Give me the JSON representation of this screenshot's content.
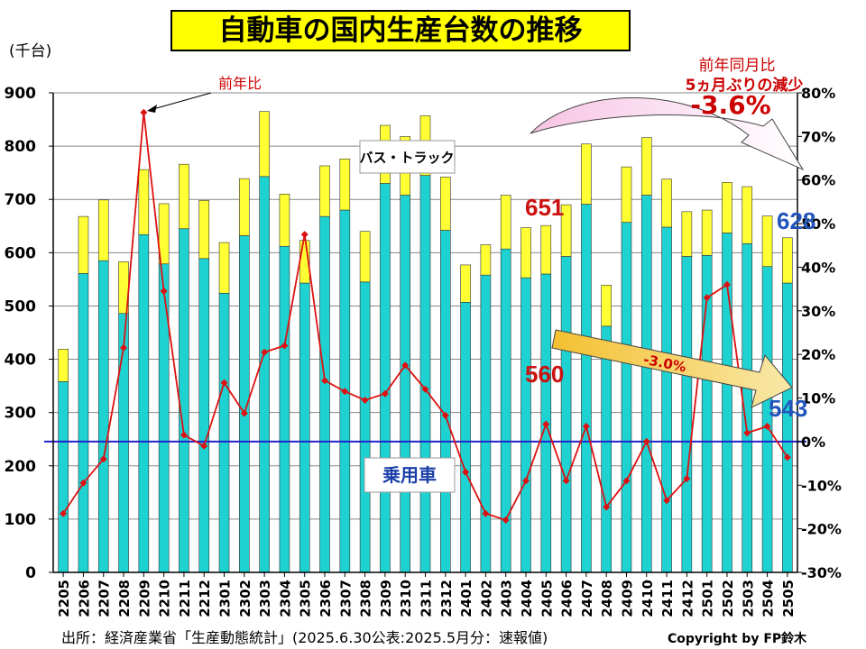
{
  "header": {
    "title": "自動車の国内生産台数の推移",
    "unit_label": "(千台)"
  },
  "yoy_box": {
    "title": "前年同月比",
    "subtitle": "5ヵ月ぶりの減少",
    "value": "-3.6%"
  },
  "footer": {
    "source": "出所：経済産業省「生産動態統計」(2025.6.30公表:2025.5月分：速報値)",
    "copyright": "Copyright by FP鈴木"
  },
  "colors": {
    "passenger": "#1ed2d2",
    "bus_truck": "#ffff33",
    "yoy_line": "#dd1111",
    "zero_line": "#2222cc",
    "value_red": "#cc1111",
    "value_blue": "#2255bb",
    "arrow_fill": "#f0b830"
  },
  "chart_data": {
    "type": "bar",
    "categories": [
      "2205",
      "2206",
      "2207",
      "2208",
      "2209",
      "2210",
      "2211",
      "2212",
      "2301",
      "2302",
      "2303",
      "2304",
      "2305",
      "2306",
      "2307",
      "2308",
      "2309",
      "2310",
      "2311",
      "2312",
      "2401",
      "2402",
      "2403",
      "2404",
      "2405",
      "2406",
      "2407",
      "2408",
      "2409",
      "2410",
      "2411",
      "2412",
      "2501",
      "2502",
      "2503",
      "2504",
      "2505"
    ],
    "stacked": true,
    "series": [
      {
        "name": "乗用車",
        "values": [
          358,
          561,
          585,
          486,
          634,
          579,
          645,
          589,
          524,
          632,
          743,
          612,
          543,
          668,
          680,
          545,
          730,
          708,
          745,
          642,
          507,
          558,
          607,
          553,
          560,
          593,
          691,
          462,
          657,
          708,
          648,
          593,
          595,
          637,
          617,
          574,
          543
        ]
      },
      {
        "name": "バス・トラック",
        "values": [
          61,
          107,
          114,
          97,
          122,
          113,
          121,
          109,
          95,
          107,
          122,
          98,
          80,
          95,
          96,
          95,
          109,
          110,
          112,
          100,
          70,
          57,
          101,
          94,
          91,
          97,
          113,
          77,
          104,
          108,
          90,
          84,
          85,
          95,
          107,
          95,
          85
        ]
      }
    ],
    "yoy_series": {
      "name": "前年比",
      "values": [
        -16.5,
        -9.5,
        -4,
        21.5,
        75.5,
        34.5,
        1.5,
        -1,
        13.5,
        6.5,
        20.5,
        22,
        47.5,
        14,
        11.5,
        9.5,
        11,
        17.5,
        12,
        6,
        -7,
        -16.5,
        -18,
        -9,
        4,
        -9,
        3.5,
        -15,
        -9,
        0,
        -13.5,
        -8.5,
        33,
        36,
        2,
        3.5,
        -3.6
      ]
    },
    "ylim": [
      0,
      900
    ],
    "yticks": [
      0,
      100,
      200,
      300,
      400,
      500,
      600,
      700,
      800,
      900
    ],
    "y2lim": [
      -30,
      80
    ],
    "y2ticks": [
      "-30%",
      "-20%",
      "-10%",
      "0%",
      "10%",
      "20%",
      "30%",
      "40%",
      "50%",
      "60%",
      "70%",
      "80%"
    ],
    "annotations": {
      "peak_label": "前年比",
      "bus_truck_label": "バス・トラック",
      "passenger_label": "乗用車",
      "trend_label": "-3.0%",
      "values": [
        {
          "text": "651",
          "at": "2405",
          "kind": "total"
        },
        {
          "text": "560",
          "at": "2405",
          "kind": "passenger"
        },
        {
          "text": "628",
          "at": "2505",
          "kind": "total"
        },
        {
          "text": "543",
          "at": "2505",
          "kind": "passenger"
        }
      ]
    }
  }
}
